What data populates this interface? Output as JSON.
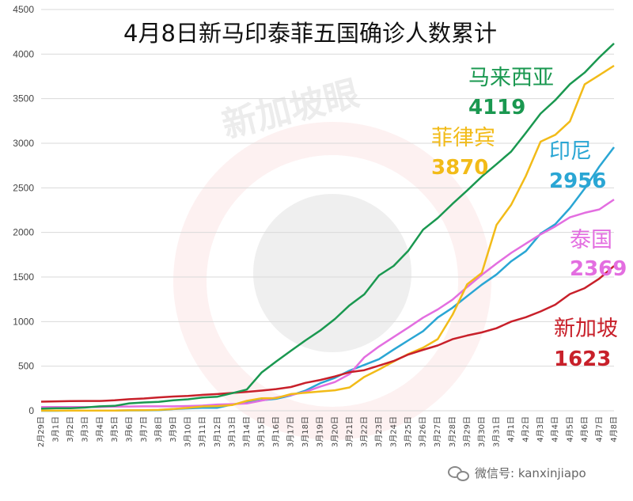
{
  "chart_data": {
    "type": "line",
    "title": "4月8日新马印泰菲五国确诊人数累计",
    "ylim": [
      0,
      4500
    ],
    "yticks": [
      0,
      500,
      1000,
      1500,
      2000,
      2500,
      3000,
      3500,
      4000,
      4500
    ],
    "grid": "horizontal",
    "categories": [
      "2月29日",
      "3月1日",
      "3月2日",
      "3月3日",
      "3月4日",
      "3月5日",
      "3月6日",
      "3月7日",
      "3月8日",
      "3月9日",
      "3月10日",
      "3月11日",
      "3月12日",
      "3月13日",
      "3月14日",
      "3月15日",
      "3月16日",
      "3月17日",
      "3月18日",
      "3月19日",
      "3月20日",
      "3月21日",
      "3月22日",
      "3月23日",
      "3月24日",
      "3月25日",
      "3月26日",
      "3月27日",
      "3月28日",
      "3月29日",
      "3月30日",
      "3月31日",
      "4月1日",
      "4月2日",
      "4月3日",
      "4月4日",
      "4月5日",
      "4月6日",
      "4月7日",
      "4月8日"
    ],
    "series": [
      {
        "name": "马来西亚",
        "label_value": "4119",
        "color": "#1a9850",
        "values": [
          25,
          29,
          29,
          36,
          50,
          55,
          83,
          93,
          99,
          117,
          129,
          149,
          158,
          197,
          238,
          428,
          553,
          673,
          790,
          900,
          1030,
          1183,
          1306,
          1518,
          1624,
          1796,
          2031,
          2161,
          2320,
          2470,
          2626,
          2766,
          2908,
          3116,
          3333,
          3483,
          3662,
          3793,
          3963,
          4119
        ]
      },
      {
        "name": "菲律宾",
        "label_value": "3870",
        "color": "#f2bb18",
        "values": [
          3,
          3,
          3,
          3,
          3,
          3,
          5,
          6,
          10,
          20,
          33,
          49,
          52,
          64,
          111,
          140,
          142,
          187,
          202,
          217,
          230,
          262,
          380,
          462,
          552,
          636,
          707,
          803,
          1075,
          1418,
          1546,
          2084,
          2311,
          2633,
          3018,
          3094,
          3246,
          3660,
          3764,
          3870
        ]
      },
      {
        "name": "印尼",
        "label_value": "2956",
        "color": "#2aa6d4",
        "values": [
          0,
          0,
          2,
          2,
          2,
          2,
          4,
          4,
          6,
          19,
          27,
          34,
          34,
          69,
          96,
          117,
          134,
          172,
          227,
          309,
          369,
          450,
          514,
          579,
          686,
          790,
          893,
          1046,
          1155,
          1285,
          1414,
          1528,
          1677,
          1790,
          1986,
          2092,
          2273,
          2491,
          2738,
          2956
        ]
      },
      {
        "name": "泰国",
        "label_value": "2369",
        "color": "#e36ee0",
        "values": [
          42,
          42,
          43,
          43,
          43,
          47,
          48,
          50,
          50,
          50,
          53,
          59,
          70,
          75,
          82,
          114,
          147,
          177,
          212,
          272,
          322,
          411,
          599,
          721,
          827,
          934,
          1045,
          1136,
          1245,
          1388,
          1524,
          1651,
          1771,
          1875,
          1978,
          2067,
          2169,
          2220,
          2258,
          2369
        ]
      },
      {
        "name": "新加坡",
        "label_value": "1623",
        "color": "#c8202a",
        "values": [
          102,
          106,
          108,
          110,
          110,
          117,
          130,
          138,
          150,
          160,
          166,
          178,
          187,
          200,
          212,
          226,
          243,
          266,
          313,
          345,
          385,
          432,
          455,
          507,
          558,
          631,
          683,
          732,
          802,
          844,
          879,
          926,
          1000,
          1049,
          1114,
          1189,
          1309,
          1375,
          1481,
          1623
        ]
      }
    ]
  },
  "watermark": {
    "brand": "新加坡眼"
  },
  "footer": {
    "label": "微信号: kanxinjiapo"
  }
}
